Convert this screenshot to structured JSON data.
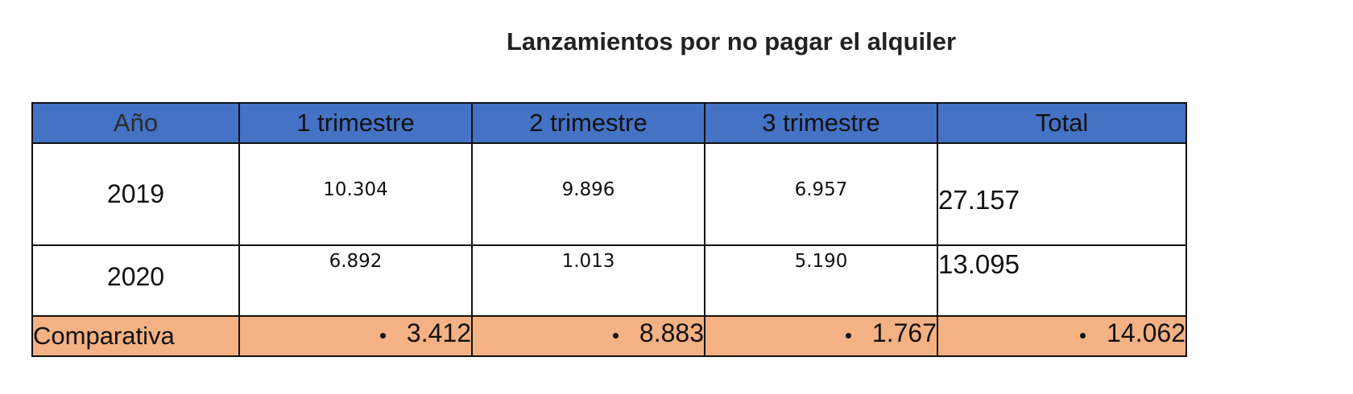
{
  "title": "Lanzamientos por no pagar el alquiler",
  "table": {
    "headers": [
      "Año",
      "1 trimestre",
      "2 trimestre",
      "3 trimestre",
      "Total"
    ],
    "rows": [
      {
        "year": "2019",
        "q1": "10.304",
        "q2": "9.896",
        "q3": "6.957",
        "total": "27.157"
      },
      {
        "year": "2020",
        "q1": "6.892",
        "q2": "1.013",
        "q3": "5.190",
        "total": "13.095"
      }
    ],
    "comparison": {
      "label": "Comparativa",
      "q1": "3.412",
      "q2": "8.883",
      "q3": "1.767",
      "total": "14.062"
    }
  },
  "colors": {
    "header_bg": "#4472c4",
    "comparison_bg": "#f4b183",
    "border": "#111111"
  }
}
